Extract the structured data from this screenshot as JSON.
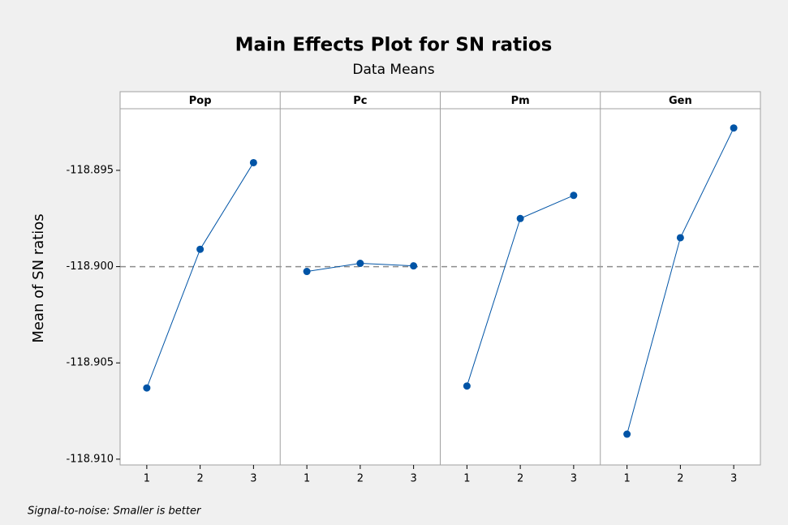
{
  "chart_data": {
    "type": "line",
    "title": "Main Effects Plot for SN ratios",
    "subtitle": "Data Means",
    "ylabel": "Mean of SN ratios",
    "footnote": "Signal-to-noise: Smaller is better",
    "color": "#0054a6",
    "reference_line": -118.9,
    "xlim": [
      0.5,
      3.5
    ],
    "xticks": [
      1,
      2,
      3
    ],
    "ylim": [
      -118.9103,
      -118.8918
    ],
    "yticks": [
      -118.895,
      {
        "value": -118.9,
        "label": "-118.900"
      },
      -118.905,
      {
        "value": -118.91,
        "label": "-118.910"
      }
    ],
    "panels": [
      {
        "name": "Pop",
        "x": [
          1,
          2,
          3
        ],
        "values": [
          -118.9063,
          -118.8991,
          -118.8946
        ]
      },
      {
        "name": "Pc",
        "x": [
          1,
          2,
          3
        ],
        "values": [
          -118.90025,
          -118.89983,
          -118.89996
        ]
      },
      {
        "name": "Pm",
        "x": [
          1,
          2,
          3
        ],
        "values": [
          -118.9062,
          -118.8975,
          -118.8963
        ]
      },
      {
        "name": "Gen",
        "x": [
          1,
          2,
          3
        ],
        "values": [
          -118.9087,
          -118.8985,
          -118.8928
        ]
      }
    ]
  }
}
